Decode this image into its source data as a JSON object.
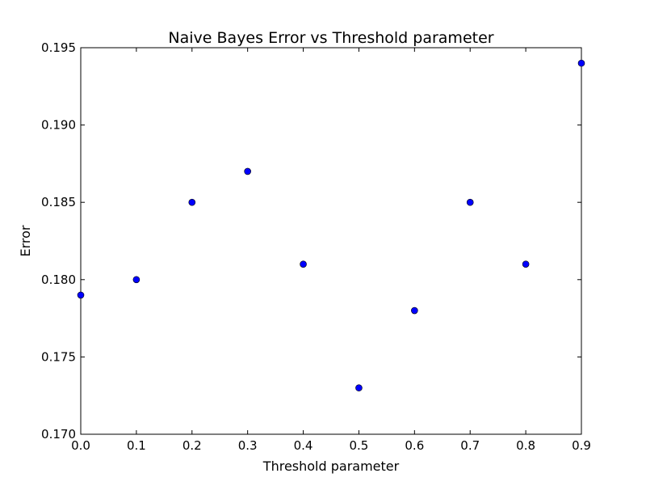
{
  "chart_data": {
    "type": "scatter",
    "title": "Naive Bayes Error vs Threshold parameter",
    "xlabel": "Threshold parameter",
    "ylabel": "Error",
    "xlim": [
      0.0,
      0.9
    ],
    "ylim": [
      0.17,
      0.195
    ],
    "xticks": [
      "0.0",
      "0.1",
      "0.2",
      "0.3",
      "0.4",
      "0.5",
      "0.6",
      "0.7",
      "0.8",
      "0.9"
    ],
    "yticks": [
      "0.170",
      "0.175",
      "0.180",
      "0.185",
      "0.190",
      "0.195"
    ],
    "grid": false,
    "legend": "none",
    "marker_color": "#0000ff",
    "series": [
      {
        "x": [
          0.0,
          0.1,
          0.2,
          0.3,
          0.4,
          0.5,
          0.6,
          0.7,
          0.8,
          0.9
        ],
        "y": [
          0.179,
          0.18,
          0.185,
          0.187,
          0.181,
          0.173,
          0.178,
          0.185,
          0.181,
          0.194
        ]
      }
    ]
  }
}
